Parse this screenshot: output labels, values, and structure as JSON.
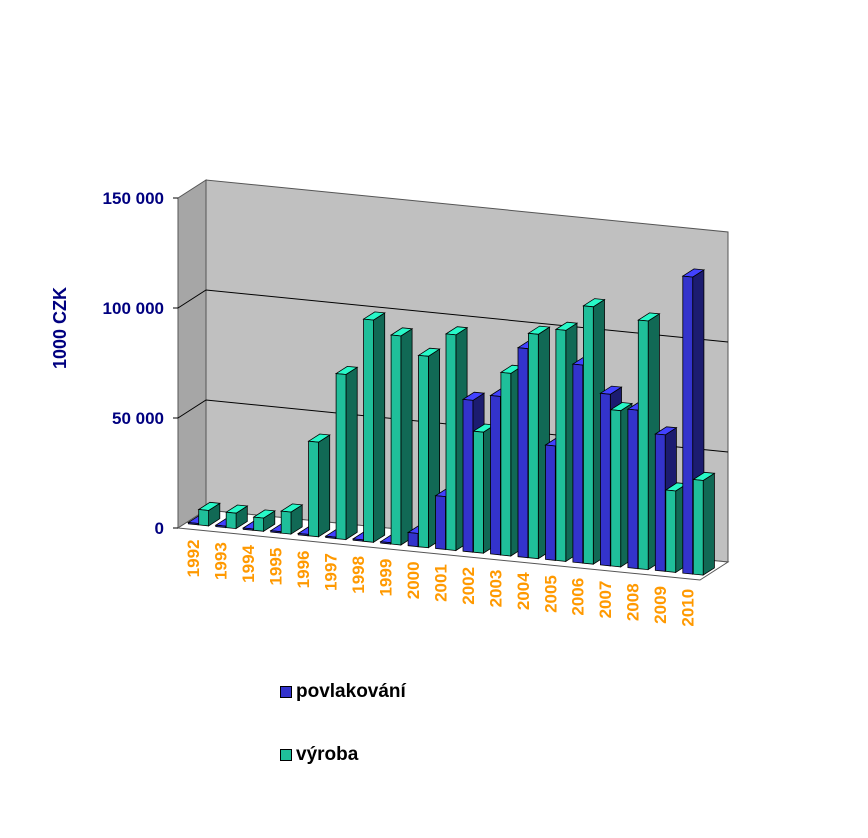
{
  "chart_data": {
    "type": "bar",
    "title": "",
    "xlabel": "",
    "ylabel": "1000 CZK",
    "ylim": [
      0,
      150000
    ],
    "yticks": [
      0,
      50000,
      100000,
      150000
    ],
    "ytick_labels": [
      "0",
      "50 000",
      "100 000",
      "150 000"
    ],
    "grid": true,
    "three_d": true,
    "legend_position": "bottom-center",
    "categories": [
      "1992",
      "1993",
      "1994",
      "1995",
      "1996",
      "1997",
      "1998",
      "1999",
      "2000",
      "2001",
      "2002",
      "2003",
      "2004",
      "2005",
      "2006",
      "2007",
      "2008",
      "2009",
      "2010"
    ],
    "series": [
      {
        "name": "povlakování",
        "color": "#3333cc",
        "values": [
          0,
          0,
          0,
          0,
          0,
          0,
          0,
          0,
          6000,
          24000,
          69000,
          72000,
          95000,
          52000,
          90000,
          78000,
          72000,
          62000,
          135000
        ]
      },
      {
        "name": "výroba",
        "color": "#1fbf9a",
        "values": [
          7000,
          7000,
          6000,
          10000,
          43000,
          75000,
          101000,
          95000,
          87000,
          98000,
          55000,
          83000,
          102000,
          105000,
          117000,
          71000,
          113000,
          37000,
          43000
        ]
      }
    ]
  },
  "colors": {
    "axis_text": "#000080",
    "category_text": "#ff9900",
    "back_wall": "#c0c0c0",
    "side_wall": "#a6a6a6"
  }
}
